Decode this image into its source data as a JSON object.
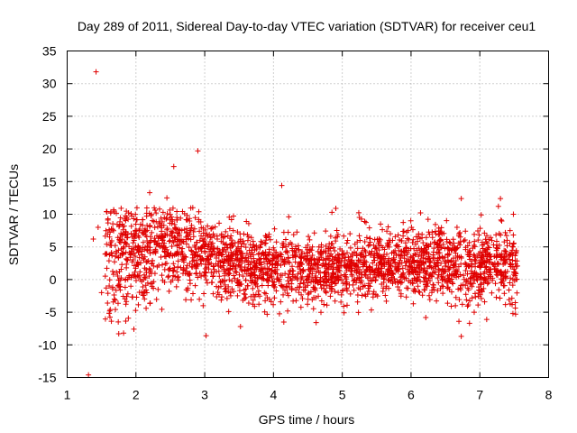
{
  "chart_data": {
    "type": "scatter",
    "title": "Day 289 of 2011, Sidereal Day-to-day VTEC variation (SDTVAR) for receiver ceu1",
    "xlabel": "GPS time / hours",
    "ylabel": "SDTVAR / TECUs",
    "xlim": [
      1,
      8
    ],
    "ylim": [
      -15,
      35
    ],
    "xticks": [
      "1",
      "2",
      "3",
      "4",
      "5",
      "6",
      "7",
      "8"
    ],
    "yticks": [
      "35",
      "30",
      "25",
      "20",
      "15",
      "10",
      "5",
      "0",
      "-5",
      "-10",
      "-15"
    ],
    "marker": "+",
    "color": "#e00000",
    "grid": true,
    "outliers": [
      {
        "x": 1.31,
        "y": -14.6
      },
      {
        "x": 1.42,
        "y": 31.8
      },
      {
        "x": 2.55,
        "y": 17.3
      },
      {
        "x": 2.9,
        "y": 19.7
      },
      {
        "x": 4.12,
        "y": 14.4
      },
      {
        "x": 1.38,
        "y": 6.2
      },
      {
        "x": 1.45,
        "y": 8.0
      },
      {
        "x": 1.5,
        "y": -2.0
      },
      {
        "x": 1.75,
        "y": -8.3
      },
      {
        "x": 1.82,
        "y": -8.2
      },
      {
        "x": 1.97,
        "y": -7.6
      },
      {
        "x": 2.2,
        "y": 13.3
      },
      {
        "x": 2.45,
        "y": 12.5
      },
      {
        "x": 3.02,
        "y": -8.6
      },
      {
        "x": 3.52,
        "y": -7.2
      },
      {
        "x": 6.73,
        "y": -8.7
      },
      {
        "x": 6.73,
        "y": 12.4
      },
      {
        "x": 7.3,
        "y": 12.4
      },
      {
        "x": 7.27,
        "y": 11.2
      },
      {
        "x": 7.02,
        "y": 9.9
      },
      {
        "x": 4.85,
        "y": 10.3
      },
      {
        "x": 4.62,
        "y": -6.6
      },
      {
        "x": 4.15,
        "y": -6.5
      },
      {
        "x": 6.85,
        "y": -6.7
      },
      {
        "x": 7.52,
        "y": -5.3
      },
      {
        "x": 7.1,
        "y": -6.1
      }
    ],
    "bulk_series": {
      "x_range": [
        1.55,
        7.55
      ],
      "count": 2600,
      "mean_by_x": [
        [
          1.6,
          3.0
        ],
        [
          2.0,
          4.0
        ],
        [
          2.6,
          4.8
        ],
        [
          3.0,
          3.5
        ],
        [
          3.6,
          2.5
        ],
        [
          4.0,
          1.5
        ],
        [
          5.0,
          1.5
        ],
        [
          5.6,
          2.5
        ],
        [
          6.0,
          2.8
        ],
        [
          7.0,
          2.0
        ],
        [
          7.55,
          2.5
        ]
      ],
      "spread_by_x": [
        [
          1.6,
          4.5
        ],
        [
          2.5,
          3.5
        ],
        [
          3.5,
          2.8
        ],
        [
          4.5,
          2.6
        ],
        [
          5.5,
          2.6
        ],
        [
          6.5,
          2.8
        ],
        [
          7.55,
          2.8
        ]
      ]
    }
  }
}
